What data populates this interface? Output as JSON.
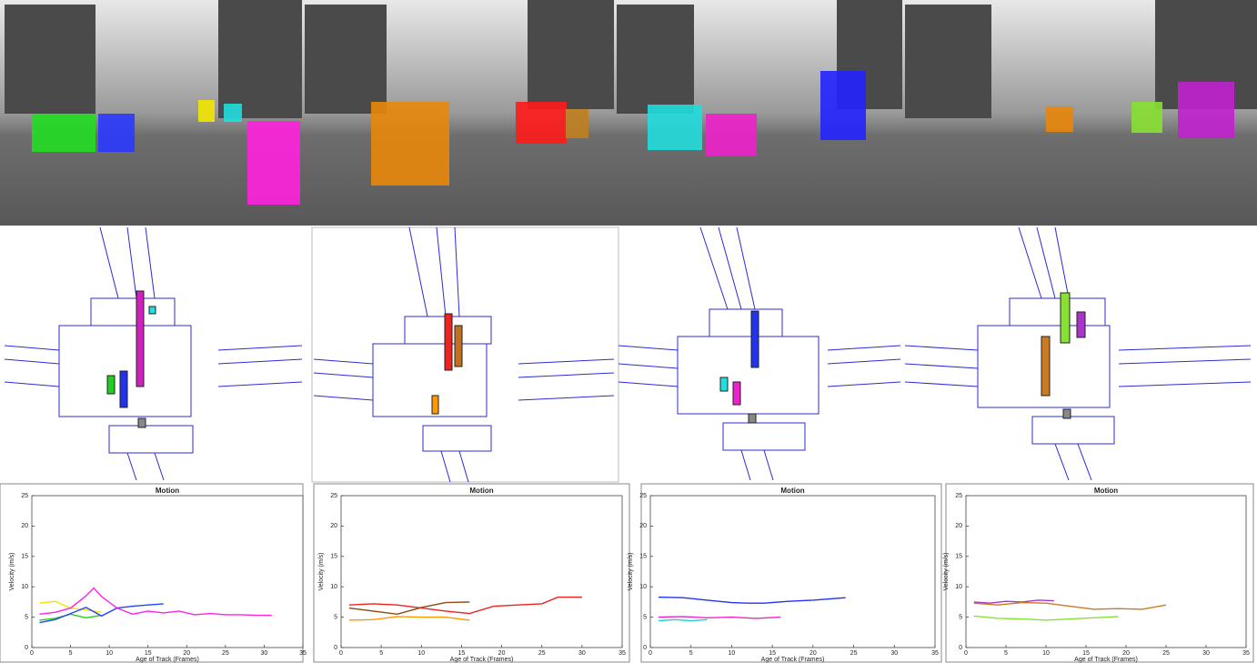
{
  "chart_data": [
    {
      "type": "line",
      "title": "Motion",
      "xlabel": "Age of Track (Frames)",
      "ylabel": "Velocity (m/s)",
      "xlim": [
        0,
        35
      ],
      "xticks": [
        0,
        5,
        10,
        15,
        20,
        25,
        30,
        35
      ],
      "ylim": [
        0,
        25
      ],
      "yticks": [
        0,
        5,
        10,
        15,
        20,
        25
      ],
      "series": [
        {
          "color": "#22cc22",
          "x": [
            1,
            3,
            5,
            7,
            9
          ],
          "values": [
            4.5,
            4.8,
            5.5,
            4.9,
            5.3
          ]
        },
        {
          "color": "#f2e600",
          "x": [
            1,
            3,
            5,
            7,
            9
          ],
          "values": [
            7.3,
            7.6,
            6.5,
            6.2,
            5.8
          ]
        },
        {
          "color": "#2244ff",
          "x": [
            1,
            3,
            5,
            7,
            9,
            11,
            13,
            15,
            17
          ],
          "values": [
            4.1,
            4.6,
            5.6,
            6.6,
            5.2,
            6.5,
            6.8,
            7.0,
            7.2
          ]
        },
        {
          "color": "#ff22dd",
          "x": [
            1,
            3,
            5,
            7,
            8,
            9,
            11,
            13,
            15,
            17,
            19,
            21,
            23,
            25,
            27,
            29,
            31
          ],
          "values": [
            5.5,
            5.8,
            6.5,
            8.5,
            9.8,
            8.4,
            6.5,
            5.5,
            6.0,
            5.7,
            6.0,
            5.4,
            5.6,
            5.4,
            5.4,
            5.3,
            5.3
          ]
        }
      ]
    },
    {
      "type": "line",
      "title": "Motion",
      "xlabel": "Age of Track (Frames)",
      "ylabel": "Velocity (m/s)",
      "xlim": [
        0,
        35
      ],
      "xticks": [
        0,
        5,
        10,
        15,
        20,
        25,
        30,
        35
      ],
      "ylim": [
        0,
        25
      ],
      "yticks": [
        0,
        5,
        10,
        15,
        20,
        25
      ],
      "series": [
        {
          "color": "#ee2222",
          "x": [
            1,
            4,
            7,
            10,
            13,
            16,
            19,
            22,
            25,
            27,
            30
          ],
          "values": [
            7.0,
            7.2,
            7.0,
            6.5,
            6.0,
            5.6,
            6.8,
            7.0,
            7.2,
            8.3,
            8.3
          ]
        },
        {
          "color": "#8a4a10",
          "x": [
            1,
            4,
            7,
            10,
            13,
            16
          ],
          "values": [
            6.5,
            6.0,
            5.5,
            6.6,
            7.4,
            7.5
          ]
        },
        {
          "color": "#ff9900",
          "x": [
            1,
            4,
            7,
            10,
            13,
            16
          ],
          "values": [
            4.5,
            4.6,
            5.1,
            5.0,
            5.0,
            4.5
          ]
        }
      ]
    },
    {
      "type": "line",
      "title": "Motion",
      "xlabel": "Age of Track (Frames)",
      "ylabel": "Velocity (m/s)",
      "xlim": [
        0,
        35
      ],
      "xticks": [
        0,
        5,
        10,
        15,
        20,
        25,
        30,
        35
      ],
      "ylim": [
        0,
        25
      ],
      "yticks": [
        0,
        5,
        10,
        15,
        20,
        25
      ],
      "series": [
        {
          "color": "#2233ee",
          "x": [
            1,
            4,
            7,
            10,
            12,
            14,
            17,
            20,
            22,
            24
          ],
          "values": [
            8.3,
            8.2,
            7.8,
            7.4,
            7.3,
            7.3,
            7.6,
            7.8,
            8.0,
            8.2
          ]
        },
        {
          "color": "#ee22cc",
          "x": [
            1,
            4,
            7,
            10,
            13,
            16
          ],
          "values": [
            5.0,
            5.1,
            4.9,
            5.0,
            4.8,
            5.0
          ]
        },
        {
          "color": "#22ccdd",
          "x": [
            1,
            3,
            5,
            7
          ],
          "values": [
            4.4,
            4.6,
            4.4,
            4.6
          ]
        }
      ]
    },
    {
      "type": "line",
      "title": "Motion",
      "xlabel": "Age of Track (Frames)",
      "ylabel": "Velocity (m/s)",
      "xlim": [
        0,
        35
      ],
      "xticks": [
        0,
        5,
        10,
        15,
        20,
        25,
        30,
        35
      ],
      "ylim": [
        0,
        25
      ],
      "yticks": [
        0,
        5,
        10,
        15,
        20,
        25
      ],
      "series": [
        {
          "color": "#aa33cc",
          "x": [
            1,
            3,
            5,
            7,
            9,
            11
          ],
          "values": [
            7.5,
            7.3,
            7.6,
            7.5,
            7.8,
            7.7
          ]
        },
        {
          "color": "#cc7a22",
          "x": [
            1,
            4,
            7,
            10,
            13,
            16,
            19,
            22,
            25
          ],
          "values": [
            7.3,
            7.0,
            7.4,
            7.3,
            6.8,
            6.3,
            6.4,
            6.3,
            7.0
          ]
        },
        {
          "color": "#88e033",
          "x": [
            1,
            4,
            7,
            10,
            13,
            16,
            19
          ],
          "values": [
            5.2,
            4.8,
            4.7,
            4.5,
            4.7,
            4.9,
            5.1
          ]
        }
      ]
    }
  ]
}
